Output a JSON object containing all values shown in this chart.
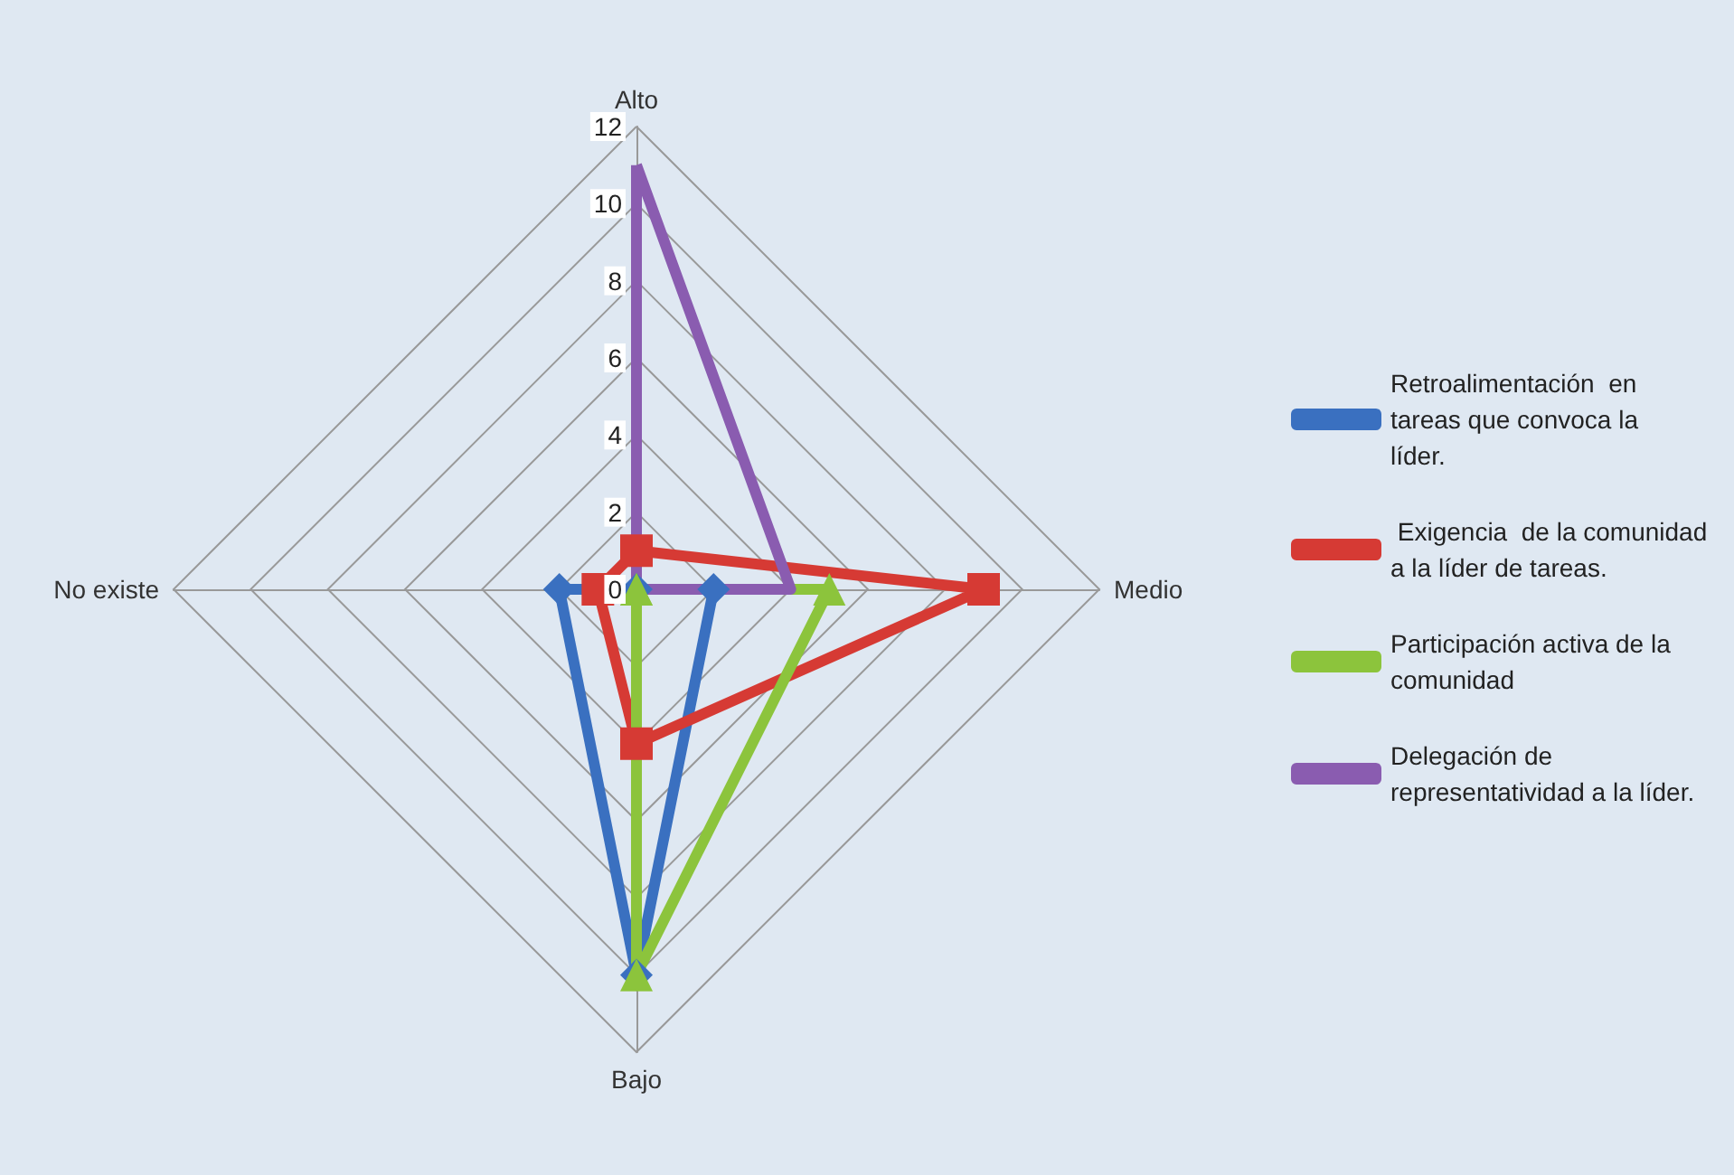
{
  "chart_data": {
    "type": "radar",
    "categories": [
      "Alto",
      "Medio",
      "Bajo",
      "No existe"
    ],
    "ylim": [
      0,
      12
    ],
    "yticks": [
      0,
      2,
      4,
      6,
      8,
      10,
      12
    ],
    "legend": "right",
    "series": [
      {
        "name": "Retroalimentación  en tareas que convoca la líder.",
        "color": "#3a70c0",
        "marker": "diamond",
        "values": [
          0,
          2,
          10,
          2
        ]
      },
      {
        "name": " Exigencia  de la comunidad a la líder de tareas.",
        "color": "#d63a34",
        "marker": "square",
        "values": [
          1,
          9,
          4,
          1
        ]
      },
      {
        "name": "Participación activa de la comunidad",
        "color": "#8cc43c",
        "marker": "triangle",
        "values": [
          0,
          5,
          10,
          0
        ]
      },
      {
        "name": "Delegación de representatividad a la líder.",
        "color": "#8a5cb0",
        "marker": "none",
        "values": [
          11,
          4,
          0,
          0
        ]
      }
    ]
  }
}
